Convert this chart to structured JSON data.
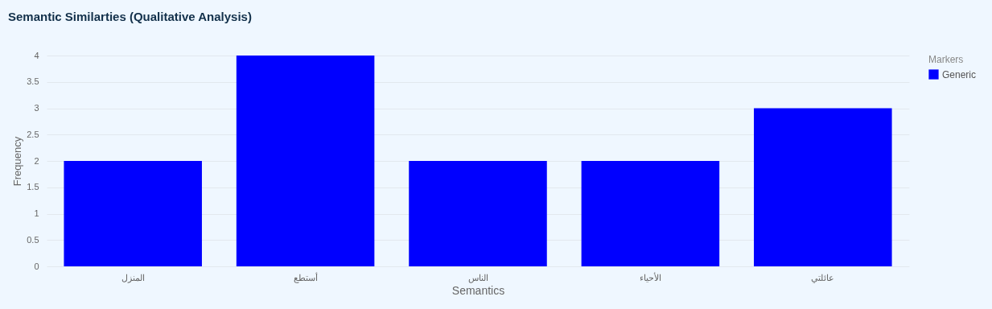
{
  "chart_data": {
    "type": "bar",
    "title": "Semantic Similarties (Qualitative Analysis)",
    "xlabel": "Semantics",
    "ylabel": "Frequency",
    "legend_title": "Markers",
    "categories": [
      "المنزل",
      "أستطع",
      "الناس",
      "الأحياء",
      "عائلتي"
    ],
    "series": [
      {
        "name": "Generic",
        "color": "#0000ff",
        "values": [
          2,
          4,
          2,
          2,
          3
        ]
      }
    ],
    "ylim": [
      0,
      4
    ],
    "yticks": [
      0,
      0.5,
      1,
      1.5,
      2,
      2.5,
      3,
      3.5,
      4
    ],
    "grid": "y",
    "legend": "top right"
  }
}
